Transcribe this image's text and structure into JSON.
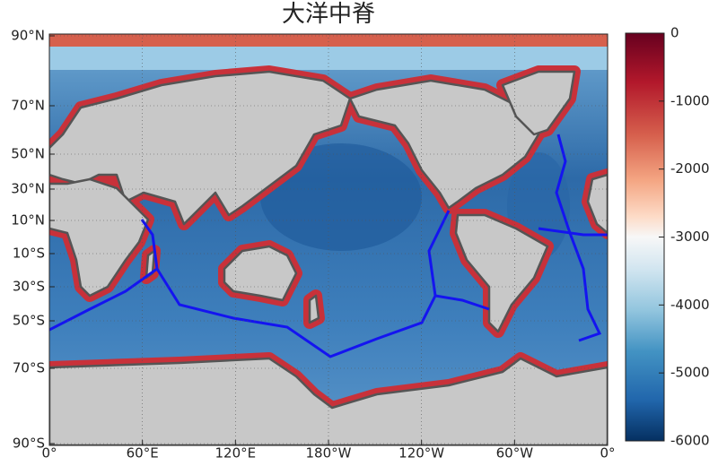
{
  "title": "大洋中脊",
  "map": {
    "lat_labels": [
      "90°N",
      "70°N",
      "50°N",
      "30°N",
      "10°N",
      "10°S",
      "30°S",
      "50°S",
      "70°S",
      "90°S"
    ],
    "lon_labels": [
      "0°",
      "60°E",
      "120°E",
      "180°W",
      "120°W",
      "60°W",
      "0°"
    ]
  },
  "colorbar": {
    "lim": [
      -6000,
      0
    ],
    "ticks": [
      0,
      -1000,
      -2000,
      -3000,
      -4000,
      -5000,
      -6000
    ]
  }
}
